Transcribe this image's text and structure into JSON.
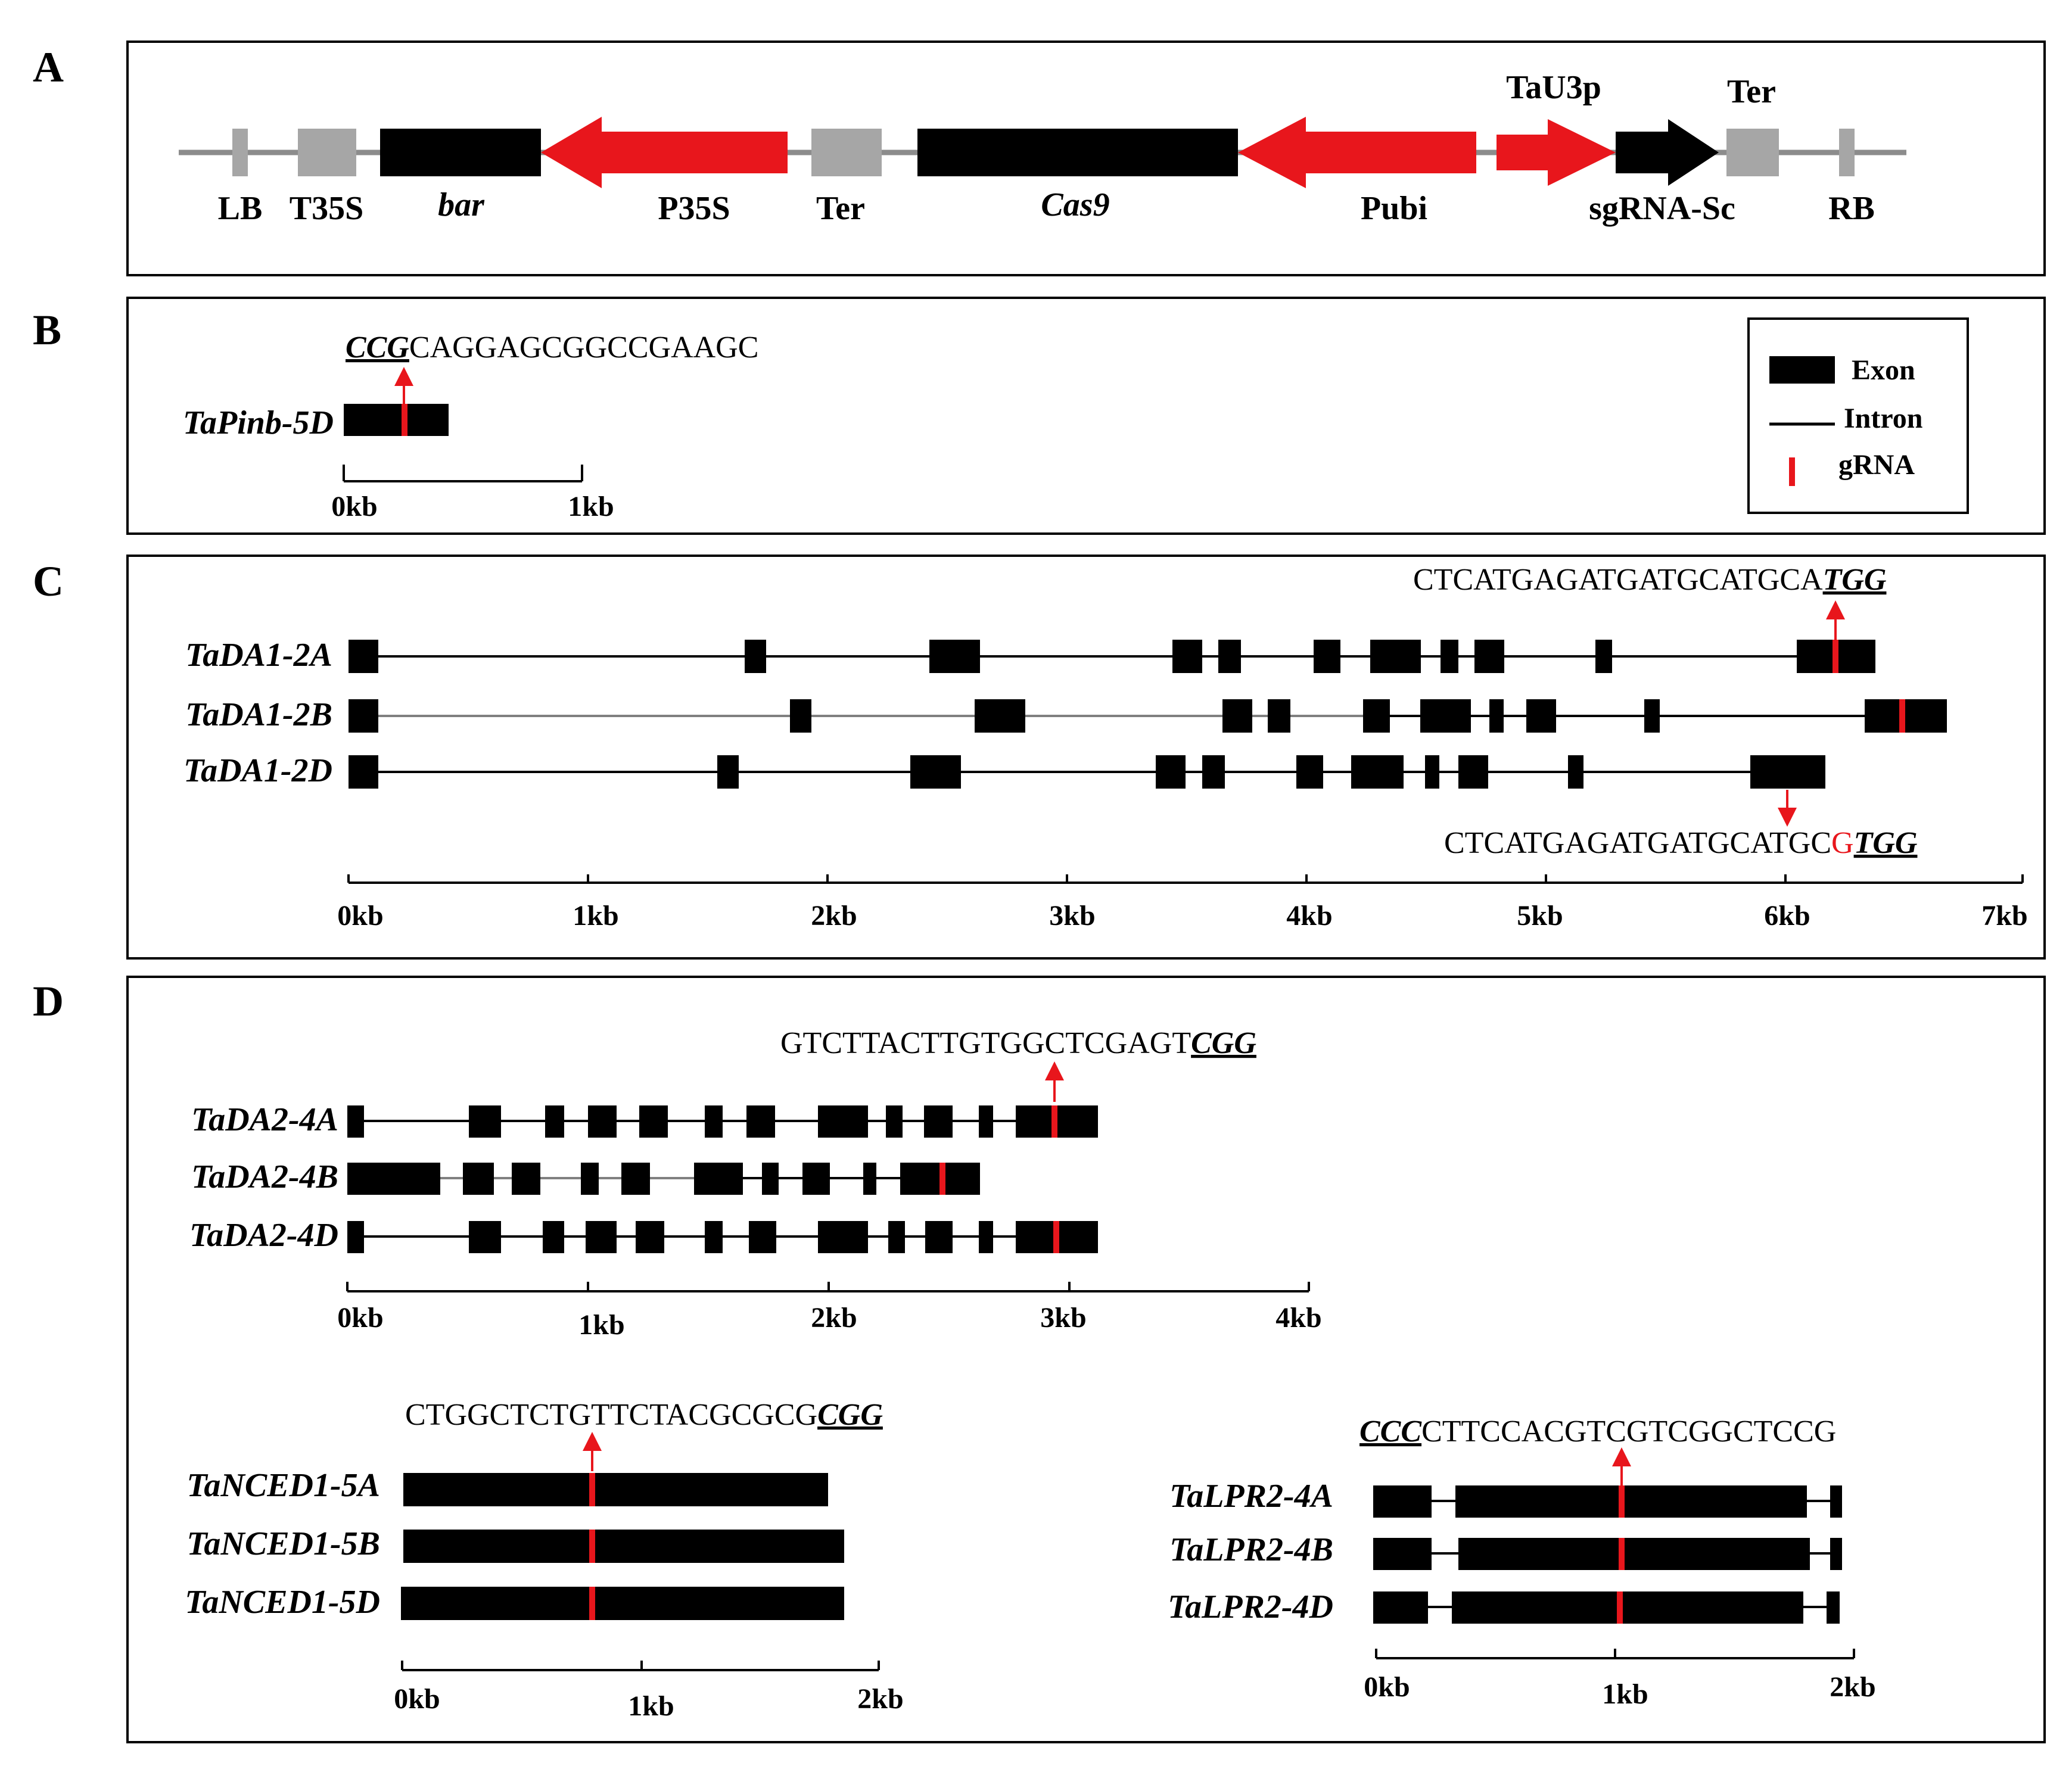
{
  "panels": {
    "A": {
      "letter": "A",
      "labels": {
        "lb": "LB",
        "t35s": "T35S",
        "bar": "bar",
        "p35s": "P35S",
        "ter1": "Ter",
        "cas9": "Cas9",
        "pubi": "Pubi",
        "tau3p": "TaU3p",
        "sgrna": "sgRNA-Sc",
        "ter2": "Ter",
        "rb": "RB"
      }
    },
    "B": {
      "letter": "B",
      "pam": "CCG",
      "target": "CAGGAGCGGCCGAAGC",
      "gene": "TaPinb-5D",
      "scale": [
        "0kb",
        "1kb"
      ],
      "legend": {
        "exon": "Exon",
        "intron": "Intron",
        "grna": "gRNA"
      }
    },
    "C": {
      "letter": "C",
      "seq_top": "CTCATGAGATGATGCATGCA",
      "pam_top": "TGG",
      "seq_bottom": "CTCATGAGATGATGCATGC",
      "mismatch": "G",
      "pam_bottom": "TGG",
      "genes": [
        "TaDA1-2A",
        "TaDA1-2B",
        "TaDA1-2D"
      ],
      "scale": [
        "0kb",
        "1kb",
        "2kb",
        "3kb",
        "4kb",
        "5kb",
        "6kb",
        "7kb"
      ]
    },
    "D": {
      "letter": "D",
      "da2": {
        "seq": "GTCTTACTTGTGGCTCGAGT",
        "pam": "CGG",
        "genes": [
          "TaDA2-4A",
          "TaDA2-4B",
          "TaDA2-4D"
        ],
        "scale": [
          "0kb",
          "1kb",
          "2kb",
          "3kb",
          "4kb"
        ]
      },
      "nced": {
        "seq": "CTGGCTCTGTTCTACGCGCG",
        "pam": "CGG",
        "genes": [
          "TaNCED1-5A",
          "TaNCED1-5B",
          "TaNCED1-5D"
        ],
        "scale": [
          "0kb",
          "1kb",
          "2kb"
        ]
      },
      "lpr": {
        "pam": "CCC",
        "seq": "CTTCCACGTCGTCGGCTCCG",
        "genes": [
          "TaLPR2-4A",
          "TaLPR2-4B",
          "TaLPR2-4D"
        ],
        "scale": [
          "0kb",
          "1kb",
          "2kb"
        ]
      }
    }
  },
  "colors": {
    "exon": "#000000",
    "grna": "#e8161c",
    "promoter": "#d9161c",
    "terminator": "#a6a6a6",
    "line": "#000000"
  }
}
